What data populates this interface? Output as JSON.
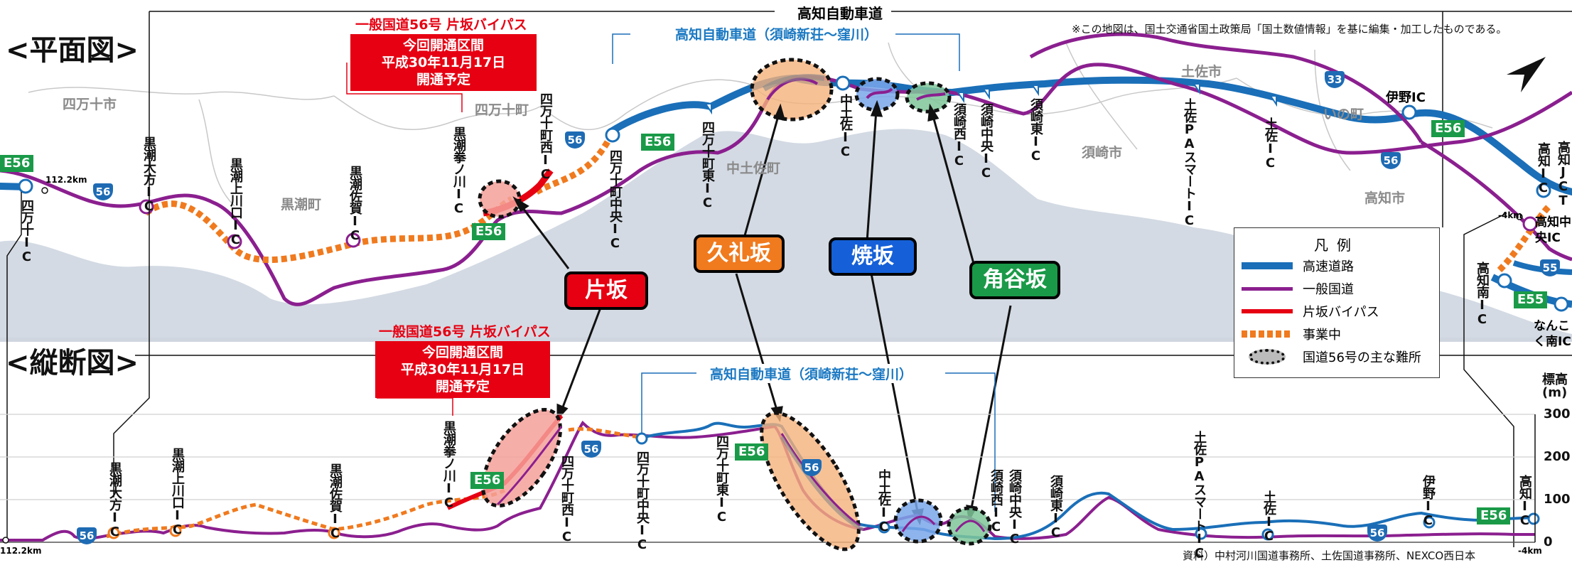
{
  "sections": {
    "plan": "<平面図>",
    "profile": "<縦断図>"
  },
  "top_road": "高知自動車道",
  "note": "※この地図は、国土交通省国土政策局「国土数値情報」を基に編集・加工したものである。",
  "bypass_plan": {
    "title": "一般国道56号 片坂バイパス",
    "box": [
      "今回開通区間",
      "平成30年11月17日",
      "開通予定"
    ]
  },
  "bypass_profile": {
    "title": "一般国道56号 片坂バイパス",
    "box": [
      "今回開通区間",
      "平成30年11月17日",
      "開通予定"
    ]
  },
  "expressway_plan": "高知自動車道（須崎新荘〜窪川）",
  "expressway_profile": "高知自動車道（須崎新荘〜窪川）",
  "callouts": {
    "katasaka": "片坂",
    "kuresaka": "久礼坂",
    "yakesaka": "焼坂",
    "tsunodanisaka": "角谷坂"
  },
  "callout_colors": {
    "katasaka": "#e60012",
    "kuresaka": "#f07a1e",
    "yakesaka": "#1560d8",
    "tsunodanisaka": "#1a9a48"
  },
  "cities": {
    "shimanto_city": "四万十市",
    "kuroshio": "黒潮町",
    "shimanto_town": "四万十町",
    "nakatosa": "中土佐町",
    "susaki": "須崎市",
    "tosa": "土佐市",
    "ino": "いの町",
    "kochi": "高知市"
  },
  "plan_ics": {
    "shimanto": "四万十IC",
    "kuroshio_ogata": "黒潮大方IC",
    "kuroshio_kamikawaguchi": "黒潮上川口IC",
    "kuroshio_saga": "黒潮佐賀IC",
    "kuroshio_kenogawa": "黒潮拳ノ川IC",
    "shimanto_nishi": "四万十町西IC",
    "shimanto_chuo": "四万十町中央IC",
    "shimanto_higashi": "四万十町東IC",
    "nakatosa": "中土佐IC",
    "susaki_nishi": "須崎西IC",
    "susaki_chuo": "須崎中央IC",
    "susaki_higashi": "須崎東IC",
    "tosa_pa": "土佐PAスマートIC",
    "tosa": "土佐IC",
    "ino": "伊野IC",
    "kochi": "高知IC",
    "kochi_jct": "高知JCT",
    "kochi_chuo": "高知中央IC",
    "kochi_minami": "高知南IC",
    "nankoku_minami": "なんこく南IC"
  },
  "profile_ics": {
    "kuroshio_ogata": "黒潮大方IC",
    "kuroshio_kamikawaguchi": "黒潮上川口IC",
    "kuroshio_saga": "黒潮佐賀IC",
    "kuroshio_kenogawa": "黒潮拳ノ川IC",
    "shimanto_nishi": "四万十町西IC",
    "shimanto_chuo": "四万十町中央IC",
    "shimanto_higashi": "四万十町東IC",
    "nakatosa": "中土佐IC",
    "susaki_nishi": "須崎西IC",
    "susaki_chuo": "須崎中央IC",
    "susaki_higashi": "須崎東IC",
    "tosa_pa": "土佐PAスマートIC",
    "tosa": "土佐IC",
    "ino": "伊野IC",
    "kochi": "高知IC"
  },
  "shields": {
    "e56": "E56",
    "e55": "E55",
    "r56": "56",
    "r33": "33",
    "r55": "55"
  },
  "distances": {
    "left_plan": "112.2km",
    "right_plan": "-4km",
    "left_profile": "112.2km",
    "right_profile": "-4km"
  },
  "elevation_axis": {
    "title": "標高",
    "unit": "(m)",
    "ticks": [
      "300",
      "200",
      "100",
      "0"
    ]
  },
  "legend": {
    "title": "凡例",
    "items": [
      {
        "label": "高速道路",
        "color": "#1a6fb8"
      },
      {
        "label": "一般国道",
        "color": "#8b1f8f"
      },
      {
        "label": "片坂バイパス",
        "color": "#e60012"
      },
      {
        "label": "事業中",
        "color": "#f07a1e"
      },
      {
        "label": "国道56号の主な難所",
        "color": "#111111"
      }
    ]
  },
  "source": "資料）中村河川国道事務所、土佐国道事務所、NEXCO西日本"
}
